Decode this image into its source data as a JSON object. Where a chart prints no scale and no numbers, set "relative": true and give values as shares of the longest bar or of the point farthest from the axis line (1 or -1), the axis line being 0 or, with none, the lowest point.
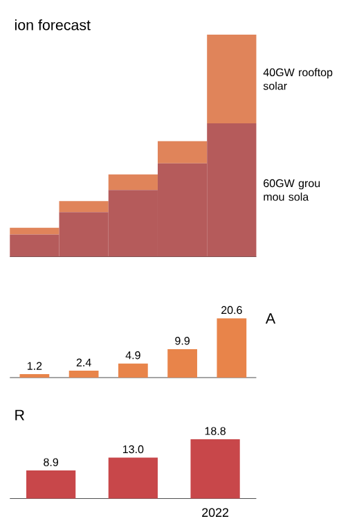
{
  "chart_data": [
    {
      "type": "bar",
      "title": "ion forecast",
      "categories": [
        null,
        null,
        null,
        null,
        null
      ],
      "stacked": true,
      "relative": true,
      "series": [
        {
          "name": "60GW grou mou sola",
          "color": "#b55b5b",
          "values": [
            0.1,
            0.2,
            0.3,
            0.42,
            0.6
          ]
        },
        {
          "name": "40GW rooftop solar",
          "color": "#e0845a",
          "values": [
            0.03,
            0.05,
            0.07,
            0.1,
            0.4
          ]
        }
      ]
    },
    {
      "type": "bar",
      "annotations": [
        "A"
      ],
      "categories": [
        null,
        null,
        null,
        null,
        null
      ],
      "values": [
        1.2,
        2.4,
        4.9,
        9.9,
        20.6
      ],
      "color": "#e8844a",
      "data_labels": true,
      "tick_labels": false
    },
    {
      "type": "bar",
      "title": "R",
      "categories": [
        null,
        null,
        "2022"
      ],
      "values": [
        8.9,
        13,
        18.8
      ],
      "value_labels": [
        "8.9",
        "13.0",
        "18.8"
      ],
      "color": "#c8474a",
      "tick_labels": "x"
    }
  ]
}
